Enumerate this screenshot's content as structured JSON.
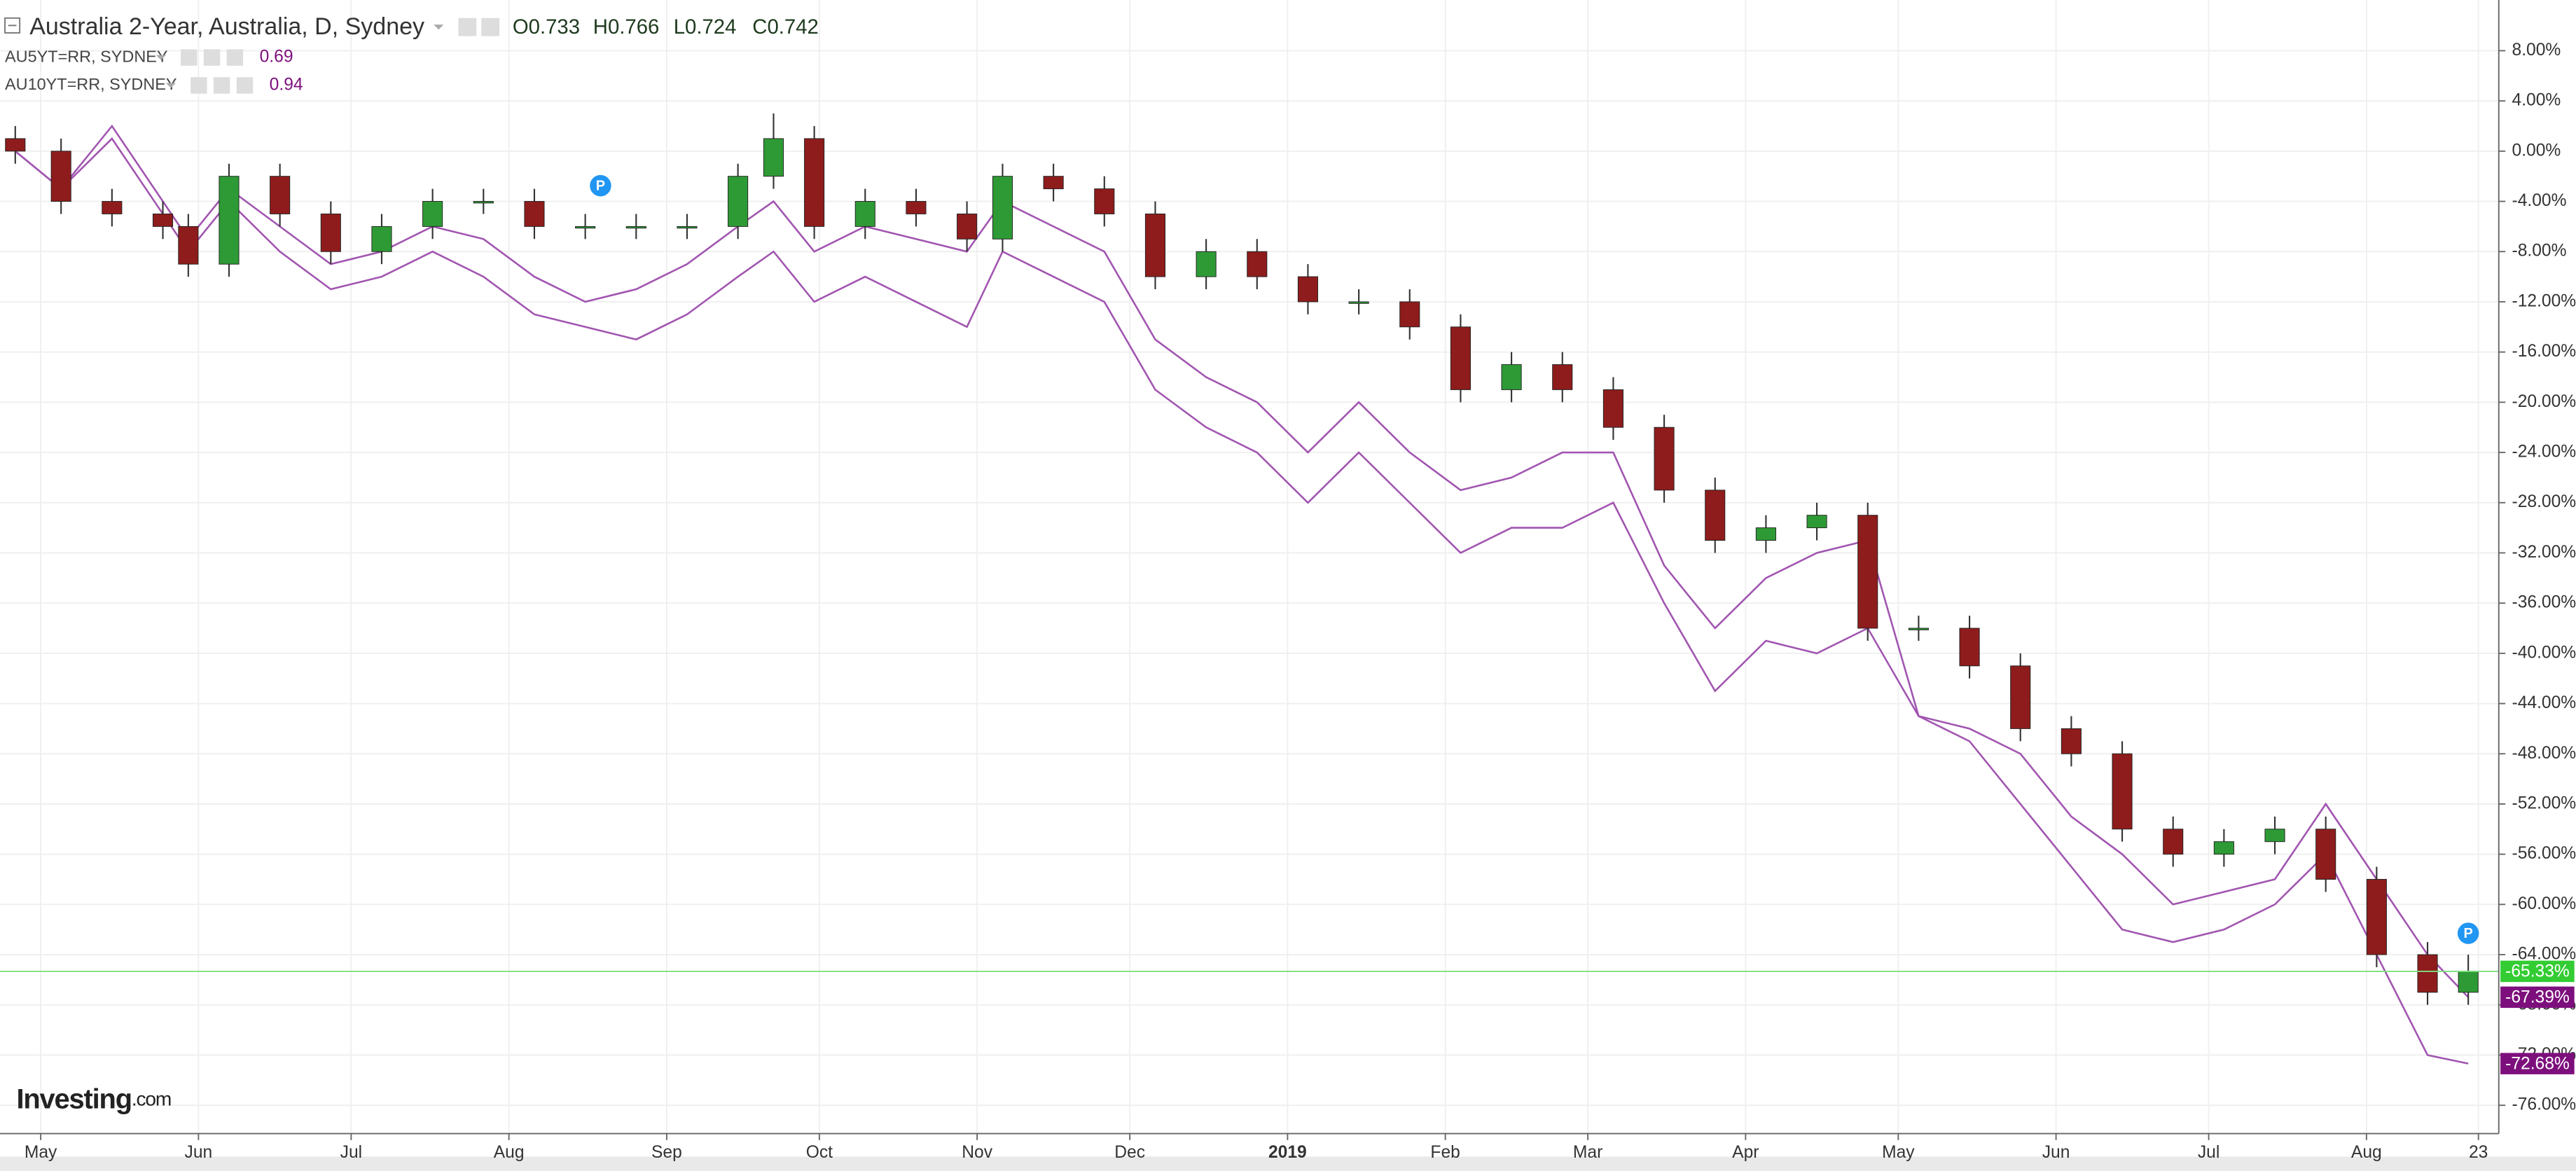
{
  "chart_data": {
    "type": "candlestick",
    "title": "Australia 2-Year, Australia, D, Sydney",
    "ohlc_labels": [
      "O0.733",
      "H0.766",
      "L0.724",
      "C0.742"
    ],
    "x": [
      3,
      12,
      22,
      32,
      37,
      45,
      55,
      65,
      75,
      85,
      95,
      105,
      115,
      125,
      135,
      145,
      152,
      160,
      170,
      180,
      190,
      197,
      207,
      217,
      227,
      237,
      247,
      257,
      267,
      277,
      287,
      297,
      307,
      317,
      327,
      337,
      347,
      357,
      367,
      377,
      387,
      397,
      407,
      417,
      427,
      437,
      447,
      457,
      467,
      477,
      485
    ],
    "xlim": [
      0,
      491
    ],
    "xticks": [
      {
        "value": 8,
        "label": "May"
      },
      {
        "value": 39,
        "label": "Jun"
      },
      {
        "value": 69,
        "label": "Jul"
      },
      {
        "value": 100,
        "label": "Aug"
      },
      {
        "value": 131,
        "label": "Sep"
      },
      {
        "value": 161,
        "label": "Oct"
      },
      {
        "value": 192,
        "label": "Nov"
      },
      {
        "value": 222,
        "label": "Dec"
      },
      {
        "value": 253,
        "label": "2019"
      },
      {
        "value": 284,
        "label": "Feb"
      },
      {
        "value": 312,
        "label": "Mar"
      },
      {
        "value": 343,
        "label": "Apr"
      },
      {
        "value": 373,
        "label": "May"
      },
      {
        "value": 404,
        "label": "Jun"
      },
      {
        "value": 434,
        "label": "Jul"
      },
      {
        "value": 465,
        "label": "Aug"
      },
      {
        "value": 487,
        "label": "23"
      }
    ],
    "ylim": [
      -78.25,
      12.04
    ],
    "yticks": [
      {
        "value": 8,
        "label": "8.00%"
      },
      {
        "value": 4,
        "label": "4.00%"
      },
      {
        "value": 0,
        "label": "0.00%"
      },
      {
        "value": -4,
        "label": "-4.00%"
      },
      {
        "value": -8,
        "label": "-8.00%"
      },
      {
        "value": -12,
        "label": "-12.00%"
      },
      {
        "value": -16,
        "label": "-16.00%"
      },
      {
        "value": -20,
        "label": "-20.00%"
      },
      {
        "value": -24,
        "label": "-24.00%"
      },
      {
        "value": -28,
        "label": "-28.00%"
      },
      {
        "value": -32,
        "label": "-32.00%"
      },
      {
        "value": -36,
        "label": "-36.00%"
      },
      {
        "value": -40,
        "label": "-40.00%"
      },
      {
        "value": -44,
        "label": "-44.00%"
      },
      {
        "value": -48,
        "label": "-48.00%"
      },
      {
        "value": -52,
        "label": "-52.00%"
      },
      {
        "value": -56,
        "label": "-56.00%"
      },
      {
        "value": -60,
        "label": "-60.00%"
      },
      {
        "value": -64,
        "label": "-64.00%"
      },
      {
        "value": -68,
        "label": "-68.00%"
      },
      {
        "value": -72,
        "label": "-72.00%"
      },
      {
        "value": -76,
        "label": "-76.00%"
      }
    ],
    "grid": true,
    "candles": {
      "color_up": "#2e9a35",
      "color_down": "#8e1c1c",
      "label_color": "#33cc33",
      "open": [
        1,
        0,
        -4,
        -5,
        -6,
        -9,
        -2,
        -5,
        -8,
        -6,
        -4,
        -4,
        -6,
        -6,
        -6,
        -6,
        -2,
        1,
        -6,
        -4,
        -5,
        -7,
        -2,
        -3,
        -5,
        -10,
        -8,
        -10,
        -12,
        -12,
        -14,
        -19,
        -17,
        -19,
        -22,
        -27,
        -31,
        -30,
        -29,
        -38,
        -38,
        -41,
        -46,
        -48,
        -54,
        -56,
        -55,
        -54,
        -58,
        -64,
        -67
      ],
      "high": [
        2,
        1,
        -3,
        -4,
        -5,
        -1,
        -1,
        -4,
        -5,
        -3,
        -3,
        -3,
        -5,
        -5,
        -5,
        -1,
        3,
        2,
        -3,
        -3,
        -4,
        -1,
        -1,
        -2,
        -4,
        -7,
        -7,
        -9,
        -11,
        -11,
        -13,
        -16,
        -16,
        -18,
        -21,
        -26,
        -29,
        -28,
        -28,
        -37,
        -37,
        -40,
        -45,
        -47,
        -53,
        -54,
        -53,
        -53,
        -57,
        -63,
        -64
      ],
      "low": [
        -1,
        -5,
        -6,
        -7,
        -10,
        -10,
        -6,
        -9,
        -9,
        -7,
        -5,
        -7,
        -7,
        -7,
        -7,
        -7,
        -3,
        -7,
        -7,
        -6,
        -8,
        -8,
        -4,
        -6,
        -11,
        -11,
        -11,
        -13,
        -13,
        -15,
        -20,
        -20,
        -20,
        -23,
        -28,
        -32,
        -32,
        -31,
        -39,
        -39,
        -42,
        -47,
        -49,
        -55,
        -57,
        -57,
        -56,
        -59,
        -65,
        -68,
        -68
      ],
      "close": [
        0,
        -4,
        -5,
        -6,
        -9,
        -2,
        -5,
        -8,
        -6,
        -4,
        -4,
        -6,
        -6,
        -6,
        -6,
        -2,
        1,
        -6,
        -4,
        -5,
        -7,
        -2,
        -3,
        -5,
        -10,
        -8,
        -10,
        -12,
        -12,
        -14,
        -19,
        -17,
        -19,
        -22,
        -27,
        -31,
        -30,
        -29,
        -38,
        -38,
        -41,
        -46,
        -48,
        -54,
        -56,
        -55,
        -54,
        -58,
        -64,
        -67,
        -65.33
      ],
      "value_labels": [
        null,
        null,
        null,
        null,
        null,
        null,
        null,
        null,
        null,
        null,
        null,
        null,
        null,
        null,
        null,
        null,
        null,
        null,
        null,
        null,
        null,
        null,
        null,
        null,
        null,
        null,
        null,
        null,
        null,
        null,
        null,
        null,
        null,
        null,
        null,
        null,
        null,
        null,
        null,
        null,
        null,
        null,
        null,
        null,
        null,
        null,
        null,
        null,
        null,
        null,
        "-65.33%"
      ]
    },
    "series": [
      {
        "name": "AU5YT=RR, SYDNEY",
        "quote": "0.69",
        "color": "#a155b0",
        "label_color": "#7d0f7d",
        "values": [
          0,
          -3,
          2,
          -4,
          -7,
          -3,
          -6,
          -9,
          -8,
          -6,
          -7,
          -10,
          -12,
          -11,
          -9,
          -6,
          -4,
          -8,
          -6,
          -7,
          -8,
          -4,
          -6,
          -8,
          -15,
          -18,
          -20,
          -24,
          -20,
          -24,
          -27,
          -26,
          -24,
          -24,
          -33,
          -38,
          -34,
          -32,
          -31,
          -45,
          -46,
          -48,
          -53,
          -56,
          -60,
          -59,
          -58,
          -52,
          -58,
          -64,
          -67.39
        ],
        "value_labels": [
          null,
          null,
          null,
          null,
          null,
          null,
          null,
          null,
          null,
          null,
          null,
          null,
          null,
          null,
          null,
          null,
          null,
          null,
          null,
          null,
          null,
          null,
          null,
          null,
          null,
          null,
          null,
          null,
          null,
          null,
          null,
          null,
          null,
          null,
          null,
          null,
          null,
          null,
          null,
          null,
          null,
          null,
          null,
          null,
          null,
          null,
          null,
          null,
          null,
          null,
          "-67.39%"
        ]
      },
      {
        "name": "AU10YT=RR, SYDNEY",
        "quote": "0.94",
        "color": "#a155b0",
        "label_color": "#7d0f7d",
        "values": [
          0,
          -3,
          1,
          -5,
          -8,
          -4,
          -8,
          -11,
          -10,
          -8,
          -10,
          -13,
          -14,
          -15,
          -13,
          -10,
          -8,
          -12,
          -10,
          -12,
          -14,
          -8,
          -10,
          -12,
          -19,
          -22,
          -24,
          -28,
          -24,
          -28,
          -32,
          -30,
          -30,
          -28,
          -36,
          -43,
          -39,
          -40,
          -38,
          -45,
          -47,
          -52,
          -57,
          -62,
          -63,
          -62,
          -60,
          -56,
          -64,
          -72,
          -72.68
        ],
        "value_labels": [
          null,
          null,
          null,
          null,
          null,
          null,
          null,
          null,
          null,
          null,
          null,
          null,
          null,
          null,
          null,
          null,
          null,
          null,
          null,
          null,
          null,
          null,
          null,
          null,
          null,
          null,
          null,
          null,
          null,
          null,
          null,
          null,
          null,
          null,
          null,
          null,
          null,
          null,
          null,
          null,
          null,
          null,
          null,
          null,
          null,
          null,
          null,
          null,
          null,
          null,
          "-72.68%"
        ]
      }
    ],
    "markers": [
      {
        "label": "P",
        "x": 118,
        "y": -2.75
      },
      {
        "label": "P",
        "x": 485,
        "y": -62.3
      }
    ],
    "logo": {
      "name": "Investing",
      "suffix": ".com"
    }
  }
}
